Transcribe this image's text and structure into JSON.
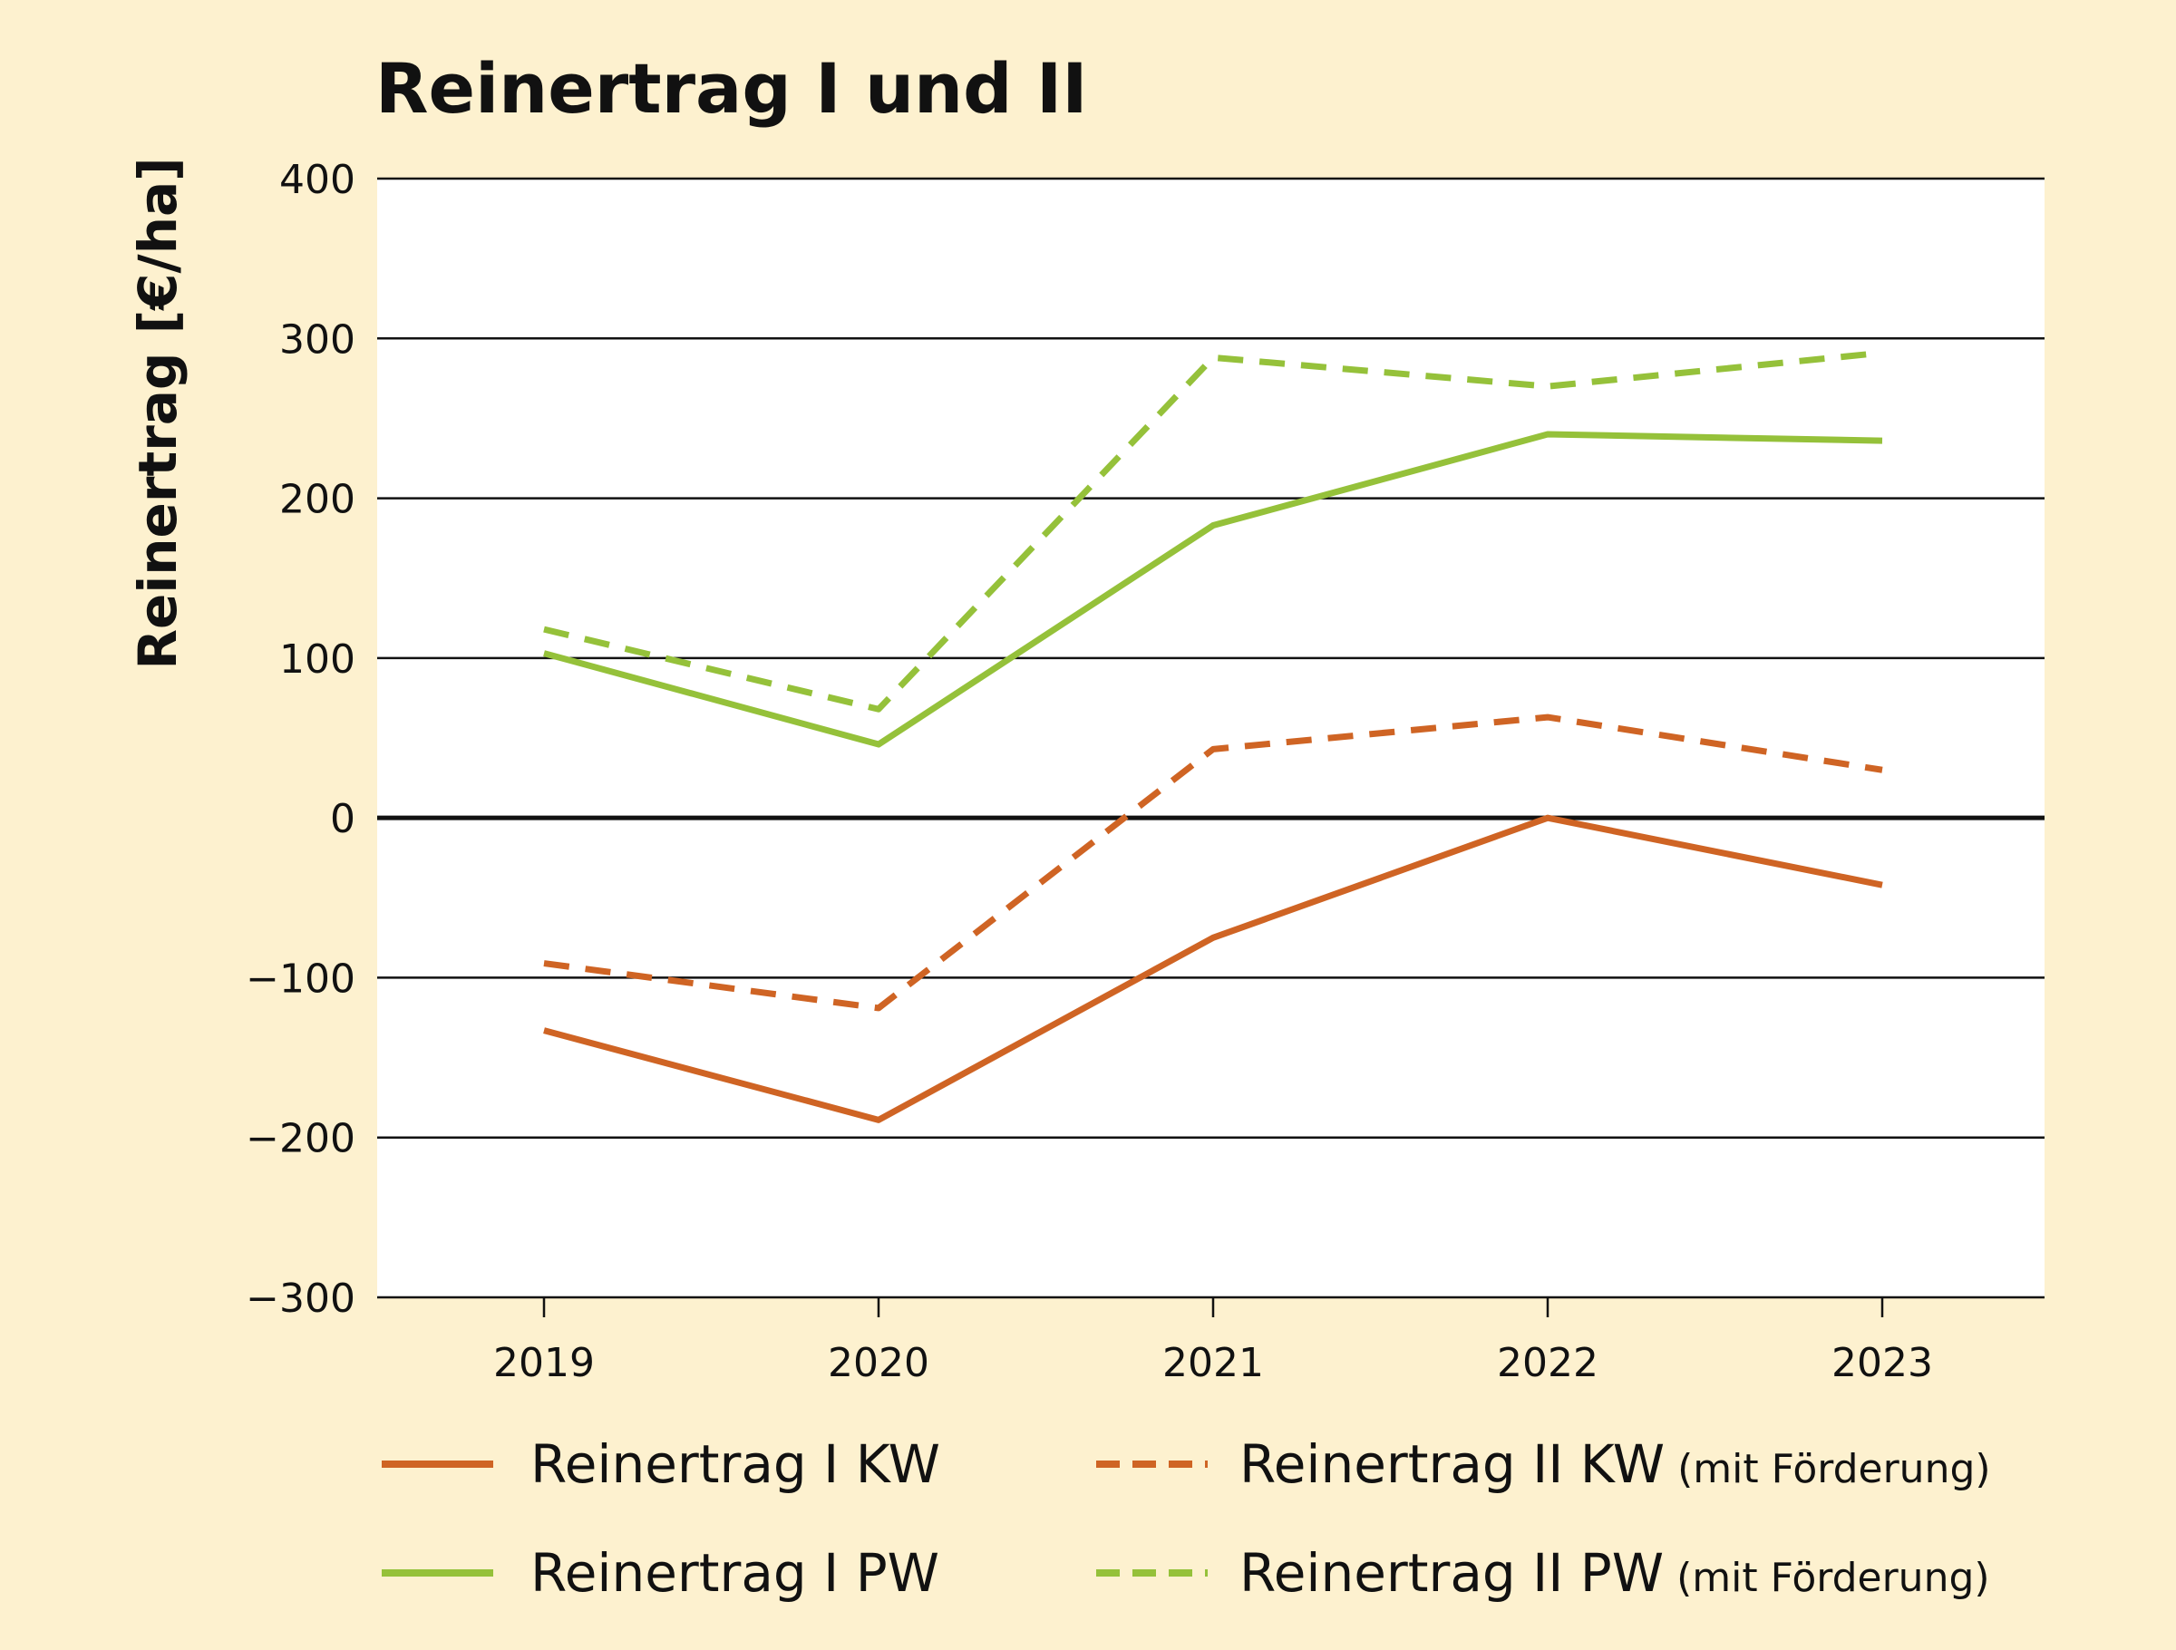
{
  "chart_data": {
    "type": "line",
    "title": "Reinertrag I und II",
    "xlabel": "",
    "ylabel": "Reinertrag [€/ha]",
    "ylim": [
      -300,
      400
    ],
    "yticks": [
      400,
      300,
      200,
      100,
      0,
      -100,
      -200,
      -300
    ],
    "ytick_labels": [
      "400",
      "300",
      "200",
      "100",
      "0",
      "−100",
      "−200",
      "−300"
    ],
    "categories": [
      "2019",
      "2020",
      "2021",
      "2022",
      "2023"
    ],
    "grid": true,
    "legend_placement": "bottom",
    "series": [
      {
        "name": "Reinertrag I KW",
        "suffix": "",
        "color": "#cf6424",
        "dashed": false,
        "values": [
          -133,
          -189,
          -75,
          0,
          -42
        ]
      },
      {
        "name": "Reinertrag II KW",
        "suffix": "(mit Förderung)",
        "color": "#cf6424",
        "dashed": true,
        "values": [
          -91,
          -119,
          43,
          63,
          30
        ]
      },
      {
        "name": "Reinertrag I PW",
        "suffix": "",
        "color": "#95c13a",
        "dashed": false,
        "values": [
          103,
          46,
          183,
          240,
          236
        ]
      },
      {
        "name": "Reinertrag II PW",
        "suffix": "(mit Förderung)",
        "color": "#95c13a",
        "dashed": true,
        "values": [
          118,
          68,
          288,
          270,
          291
        ]
      }
    ]
  }
}
